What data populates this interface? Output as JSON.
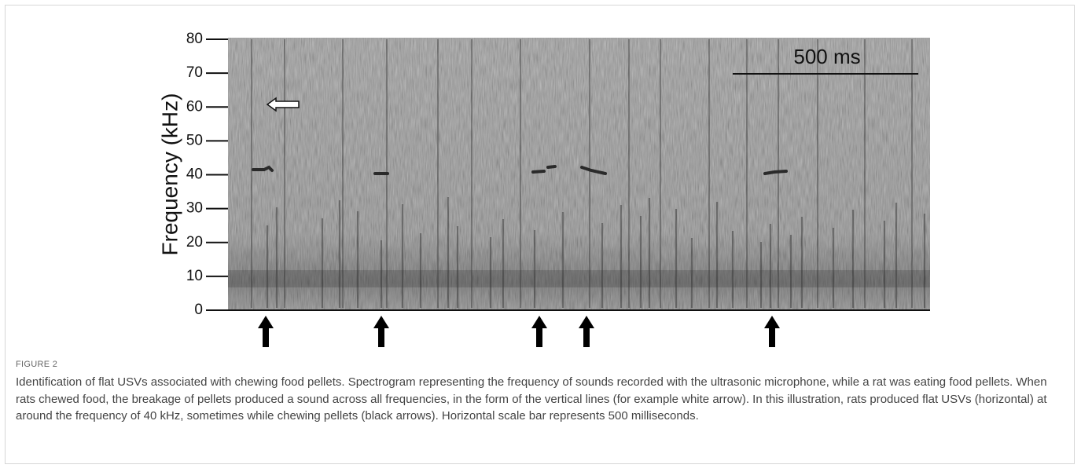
{
  "chart_data": {
    "type": "spectrogram",
    "y_label": "Frequency (kHz)",
    "ylim": [
      0,
      80
    ],
    "yticks": [
      0,
      10,
      20,
      30,
      40,
      50,
      60,
      70,
      80
    ],
    "scale_bar_label": "500 ms"
  },
  "figure": {
    "label": "FIGURE 2",
    "caption": "Identification of flat USVs associated with chewing food pellets. Spectrogram representing the frequency of sounds recorded with the ultrasonic microphone, while a rat was eating food pellets. When rats chewed food, the breakage of pellets produced a sound across all frequencies, in the form of the vertical lines (for example white arrow). In this illustration, rats produced flat USVs (horizontal) at around the frequency of 40 kHz, sometimes while chewing pellets (black arrows). Horizontal scale bar represents 500 milliseconds."
  }
}
